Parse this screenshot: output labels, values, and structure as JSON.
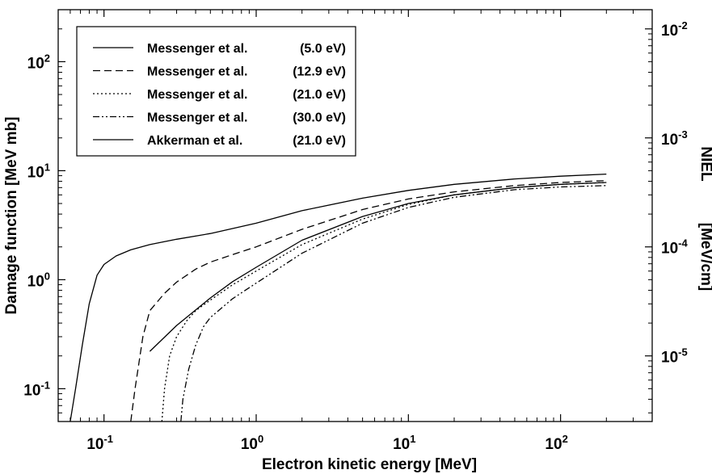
{
  "chart_data": {
    "type": "line",
    "xlabel": "Electron kinetic energy  [MeV]",
    "ylabel": "Damage function [MeV mb]",
    "y2label_top": "NIEL",
    "y2label_bottom": "[MeV/cm]",
    "x_scale": "log",
    "y_scale": "log",
    "y2_scale": "log",
    "xlim": [
      0.05,
      400
    ],
    "ylim": [
      0.05,
      300
    ],
    "y2lim": [
      2.5e-06,
      0.015
    ],
    "x_ticks": [
      {
        "base": "10",
        "exp": "-1",
        "value": 0.1
      },
      {
        "base": "10",
        "exp": "0",
        "value": 1
      },
      {
        "base": "10",
        "exp": "1",
        "value": 10
      },
      {
        "base": "10",
        "exp": "2",
        "value": 100
      }
    ],
    "y_ticks": [
      {
        "base": "10",
        "exp": "-1",
        "value": 0.1
      },
      {
        "base": "10",
        "exp": "0",
        "value": 1
      },
      {
        "base": "10",
        "exp": "1",
        "value": 10
      },
      {
        "base": "10",
        "exp": "2",
        "value": 100
      }
    ],
    "y2_ticks": [
      {
        "base": "10",
        "exp": "-5",
        "value": 1e-05
      },
      {
        "base": "10",
        "exp": "-4",
        "value": 0.0001
      },
      {
        "base": "10",
        "exp": "-3",
        "value": 0.001
      },
      {
        "base": "10",
        "exp": "-2",
        "value": 0.01
      }
    ],
    "grid": false,
    "legend_position": "top-left",
    "series": [
      {
        "name": "Messenger et al.",
        "param": "(5.0 eV)",
        "dash": "solid",
        "points": [
          [
            0.06,
            0.05
          ],
          [
            0.065,
            0.1
          ],
          [
            0.072,
            0.25
          ],
          [
            0.08,
            0.6
          ],
          [
            0.09,
            1.1
          ],
          [
            0.1,
            1.38
          ],
          [
            0.12,
            1.65
          ],
          [
            0.15,
            1.88
          ],
          [
            0.2,
            2.1
          ],
          [
            0.3,
            2.35
          ],
          [
            0.5,
            2.65
          ],
          [
            1,
            3.3
          ],
          [
            2,
            4.3
          ],
          [
            5,
            5.6
          ],
          [
            10,
            6.6
          ],
          [
            20,
            7.5
          ],
          [
            50,
            8.4
          ],
          [
            100,
            8.9
          ],
          [
            200,
            9.3
          ]
        ]
      },
      {
        "name": "Messenger et al.",
        "param": "(12.9 eV)",
        "dash": "dashed",
        "points": [
          [
            0.15,
            0.05
          ],
          [
            0.16,
            0.1
          ],
          [
            0.18,
            0.3
          ],
          [
            0.2,
            0.52
          ],
          [
            0.25,
            0.75
          ],
          [
            0.3,
            0.95
          ],
          [
            0.4,
            1.25
          ],
          [
            0.5,
            1.45
          ],
          [
            0.7,
            1.7
          ],
          [
            1,
            2.0
          ],
          [
            2,
            2.9
          ],
          [
            5,
            4.4
          ],
          [
            10,
            5.5
          ],
          [
            20,
            6.4
          ],
          [
            50,
            7.3
          ],
          [
            100,
            7.8
          ],
          [
            200,
            8.1
          ]
        ]
      },
      {
        "name": "Messenger et al.",
        "param": "(21.0 eV)",
        "dash": "dotted",
        "points": [
          [
            0.24,
            0.05
          ],
          [
            0.25,
            0.1
          ],
          [
            0.27,
            0.2
          ],
          [
            0.3,
            0.3
          ],
          [
            0.35,
            0.42
          ],
          [
            0.4,
            0.52
          ],
          [
            0.5,
            0.65
          ],
          [
            0.7,
            0.9
          ],
          [
            1,
            1.2
          ],
          [
            2,
            2.1
          ],
          [
            5,
            3.6
          ],
          [
            10,
            4.9
          ],
          [
            20,
            6.0
          ],
          [
            50,
            7.0
          ],
          [
            100,
            7.5
          ],
          [
            200,
            7.8
          ]
        ]
      },
      {
        "name": "Messenger et al.",
        "param": "(30.0 eV)",
        "dash": "dashdotdot",
        "points": [
          [
            0.32,
            0.05
          ],
          [
            0.33,
            0.08
          ],
          [
            0.36,
            0.15
          ],
          [
            0.4,
            0.25
          ],
          [
            0.45,
            0.37
          ],
          [
            0.5,
            0.45
          ],
          [
            0.7,
            0.67
          ],
          [
            1,
            0.93
          ],
          [
            2,
            1.75
          ],
          [
            5,
            3.3
          ],
          [
            10,
            4.6
          ],
          [
            20,
            5.7
          ],
          [
            50,
            6.7
          ],
          [
            100,
            7.1
          ],
          [
            200,
            7.3
          ]
        ]
      },
      {
        "name": "Akkerman et al.",
        "param": "(21.0 eV)",
        "dash": "solid",
        "points": [
          [
            0.2,
            0.22
          ],
          [
            0.3,
            0.38
          ],
          [
            0.5,
            0.68
          ],
          [
            0.7,
            0.96
          ],
          [
            1,
            1.3
          ],
          [
            2,
            2.3
          ],
          [
            5,
            3.8
          ],
          [
            10,
            5.0
          ],
          [
            20,
            6.0
          ],
          [
            50,
            7.0
          ],
          [
            100,
            7.5
          ],
          [
            200,
            7.8
          ]
        ]
      }
    ]
  }
}
